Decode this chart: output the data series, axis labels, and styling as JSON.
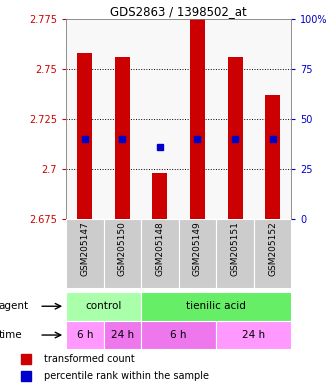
{
  "title": "GDS2863 / 1398502_at",
  "samples": [
    "GSM205147",
    "GSM205150",
    "GSM205148",
    "GSM205149",
    "GSM205151",
    "GSM205152"
  ],
  "bar_bottoms": [
    2.675,
    2.675,
    2.675,
    2.675,
    2.675,
    2.675
  ],
  "bar_tops": [
    2.758,
    2.756,
    2.698,
    2.778,
    2.756,
    2.737
  ],
  "percentile_ranks": [
    40,
    40,
    36,
    40,
    40,
    40
  ],
  "ylim_left": [
    2.675,
    2.775
  ],
  "ylim_right": [
    0,
    100
  ],
  "yticks_left": [
    2.675,
    2.7,
    2.725,
    2.75,
    2.775
  ],
  "yticks_right": [
    0,
    25,
    50,
    75,
    100
  ],
  "ytick_labels_left": [
    "2.675",
    "2.7",
    "2.725",
    "2.75",
    "2.775"
  ],
  "ytick_labels_right": [
    "0",
    "25",
    "50",
    "75",
    "100%"
  ],
  "bar_color": "#CC0000",
  "percentile_color": "#0000CC",
  "control_color": "#AAFFAA",
  "tienilic_color": "#66EE66",
  "time_colors": [
    "#FF99FF",
    "#EE77EE",
    "#EE77EE",
    "#FF99FF"
  ],
  "sample_bg_color": "#CCCCCC",
  "legend_red_label": "transformed count",
  "legend_blue_label": "percentile rank within the sample",
  "left_axis_color": "#CC0000",
  "right_axis_color": "#0000CC",
  "plot_bg": "#F8F8F8"
}
